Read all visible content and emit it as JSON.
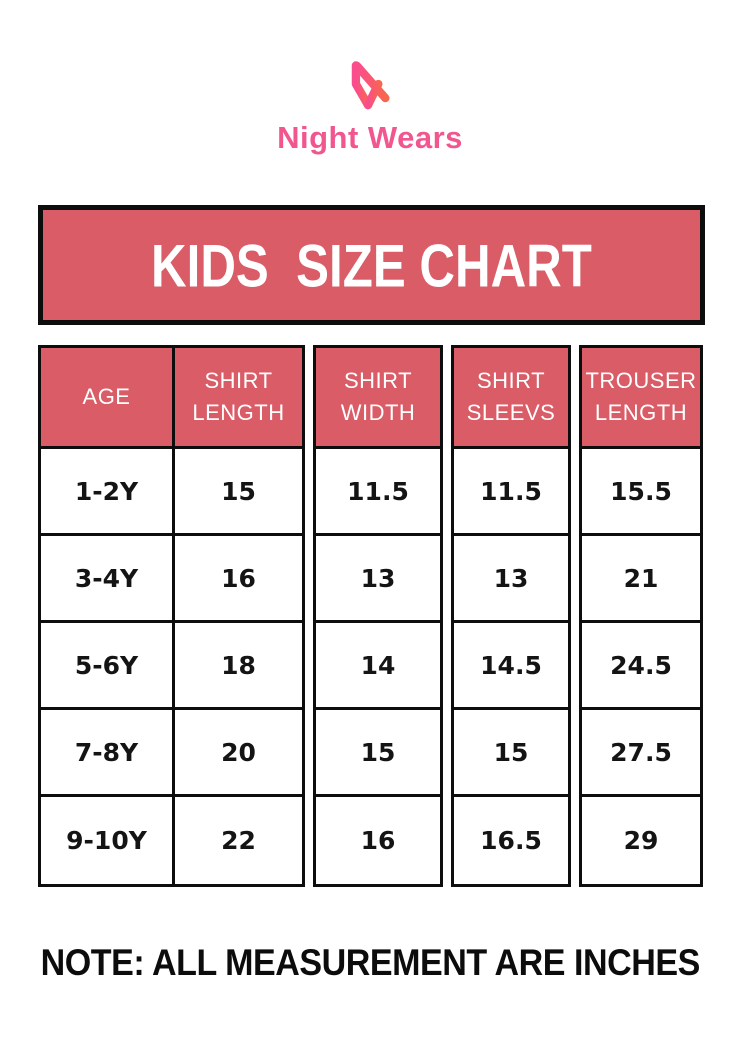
{
  "logo": {
    "brand": "Night Wears",
    "monogram": "NW"
  },
  "banner": {
    "title": "KIDS  SIZE CHART"
  },
  "table": {
    "headers": [
      "AGE",
      "SHIRT LENGTH",
      "SHIRT WIDTH",
      "SHIRT SLEEVS",
      "TROUSER LENGTH"
    ],
    "rows": [
      [
        "1-2Y",
        "15",
        "11.5",
        "11.5",
        "15.5"
      ],
      [
        "3-4Y",
        "16",
        "13",
        "13",
        "21"
      ],
      [
        "5-6Y",
        "18",
        "14",
        "14.5",
        "24.5"
      ],
      [
        "7-8Y",
        "20",
        "15",
        "15",
        "27.5"
      ],
      [
        "9-10Y",
        "22",
        "16",
        "16.5",
        "29"
      ]
    ]
  },
  "note": "NOTE: ALL MEASUREMENT ARE INCHES",
  "colors": {
    "rose": "#d95c67",
    "border_black": "#0d0d0d",
    "logo_pink": "#f2568e",
    "monogram_gradient_start": "#fa4d8e",
    "monogram_gradient_end": "#f7664e",
    "value_text": "#141414",
    "header_text": "#ffffff"
  },
  "chart_data": {
    "type": "table",
    "title": "KIDS SIZE CHART",
    "columns": [
      "AGE",
      "SHIRT LENGTH",
      "SHIRT WIDTH",
      "SHIRT SLEEVS",
      "TROUSER LENGTH"
    ],
    "rows": [
      [
        "1-2Y",
        15,
        11.5,
        11.5,
        15.5
      ],
      [
        "3-4Y",
        16,
        13,
        13,
        21
      ],
      [
        "5-6Y",
        18,
        14,
        14.5,
        24.5
      ],
      [
        "7-8Y",
        20,
        15,
        15,
        27.5
      ],
      [
        "9-10Y",
        22,
        16,
        16.5,
        29
      ]
    ],
    "units": "inches",
    "footnote": "NOTE: ALL MEASUREMENT ARE INCHES"
  }
}
